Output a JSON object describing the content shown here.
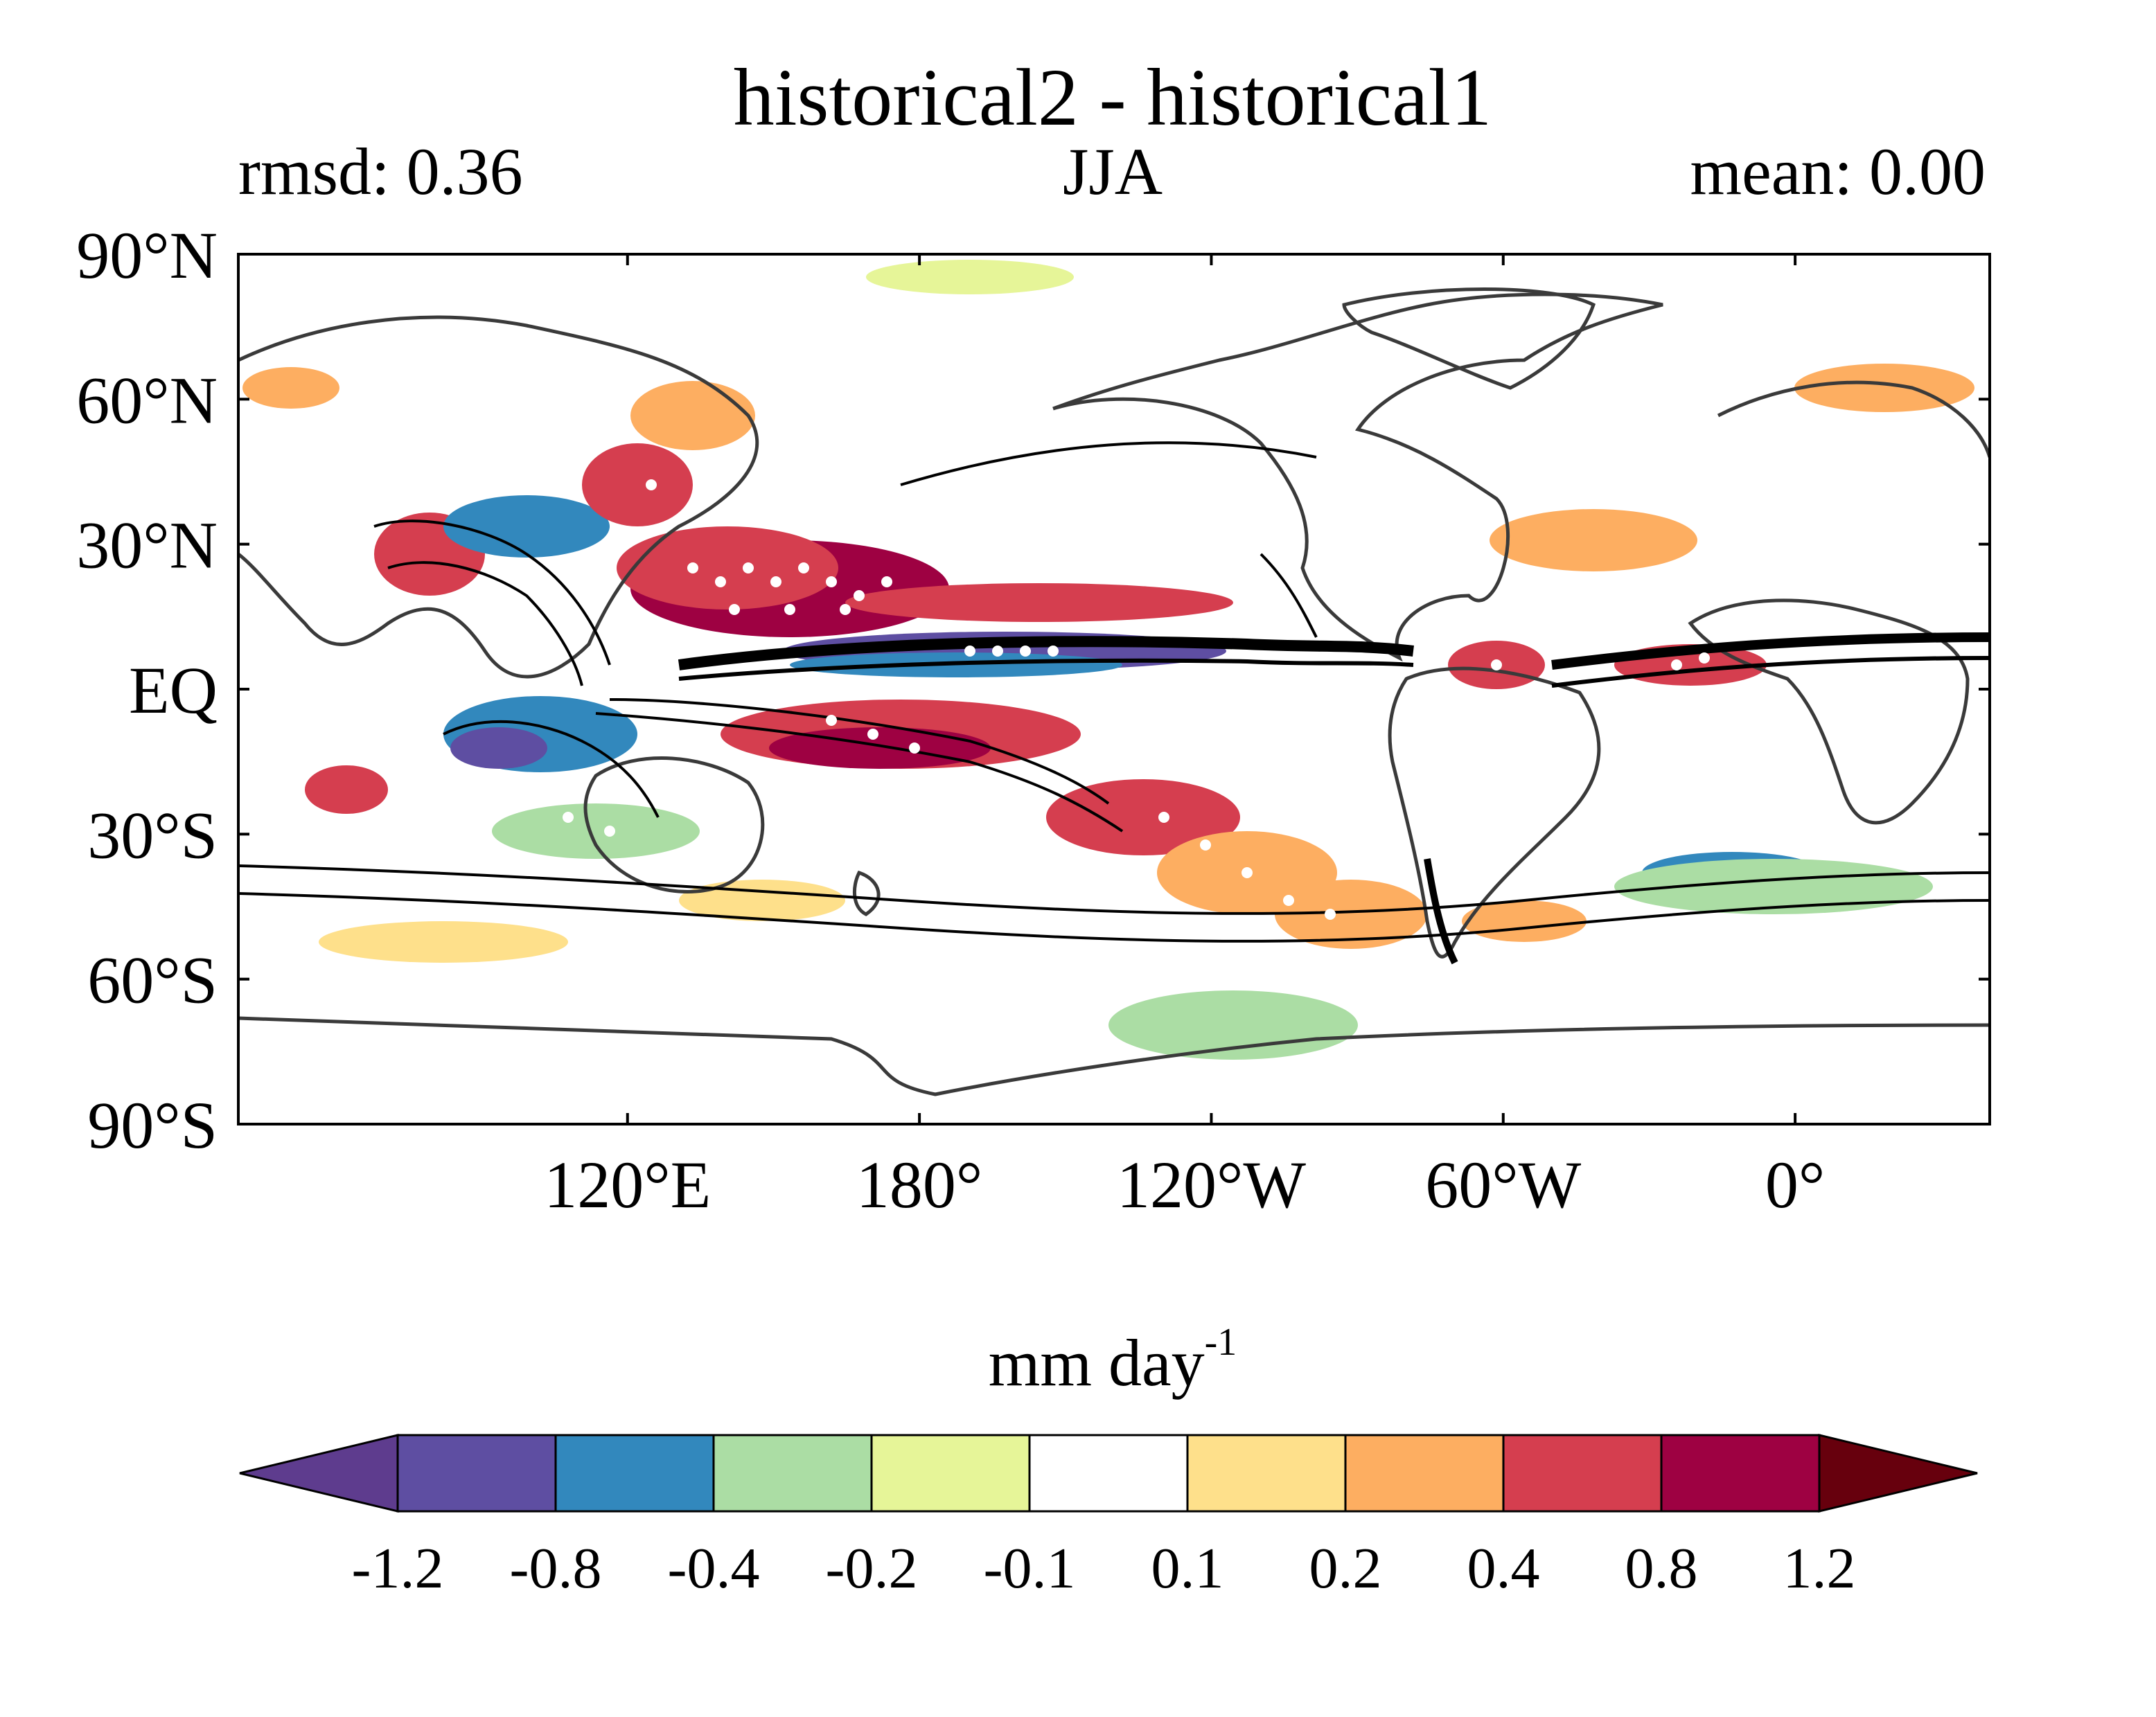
{
  "title": "historical2 - historical1",
  "subtitle": {
    "left": "rmsd: 0.36",
    "center": "JJA",
    "right": "mean: 0.00"
  },
  "map": {
    "lat_labels": [
      "90°N",
      "60°N",
      "30°N",
      "EQ",
      "30°S",
      "60°S",
      "90°S"
    ],
    "lon_labels": [
      "120°E",
      "180°",
      "120°W",
      "60°W",
      "0°"
    ],
    "lat_values": [
      90,
      60,
      30,
      0,
      -30,
      -60,
      -90
    ],
    "lon_values": [
      120,
      180,
      -120,
      -60,
      0
    ],
    "lon_range": [
      40,
      400
    ]
  },
  "colorbar": {
    "units_base": "mm day",
    "units_exponent": "-1",
    "levels": [
      "-1.2",
      "-0.8",
      "-0.4",
      "-0.2",
      "-0.1",
      "0.1",
      "0.2",
      "0.4",
      "0.8",
      "1.2"
    ],
    "colors": [
      "#5e3c8e",
      "#5e4ea2",
      "#3288bd",
      "#abdda4",
      "#e6f598",
      "#ffffff",
      "#fee08b",
      "#fdae61",
      "#d53e4f",
      "#9e0142",
      "#67000d"
    ],
    "extend": "both"
  }
}
